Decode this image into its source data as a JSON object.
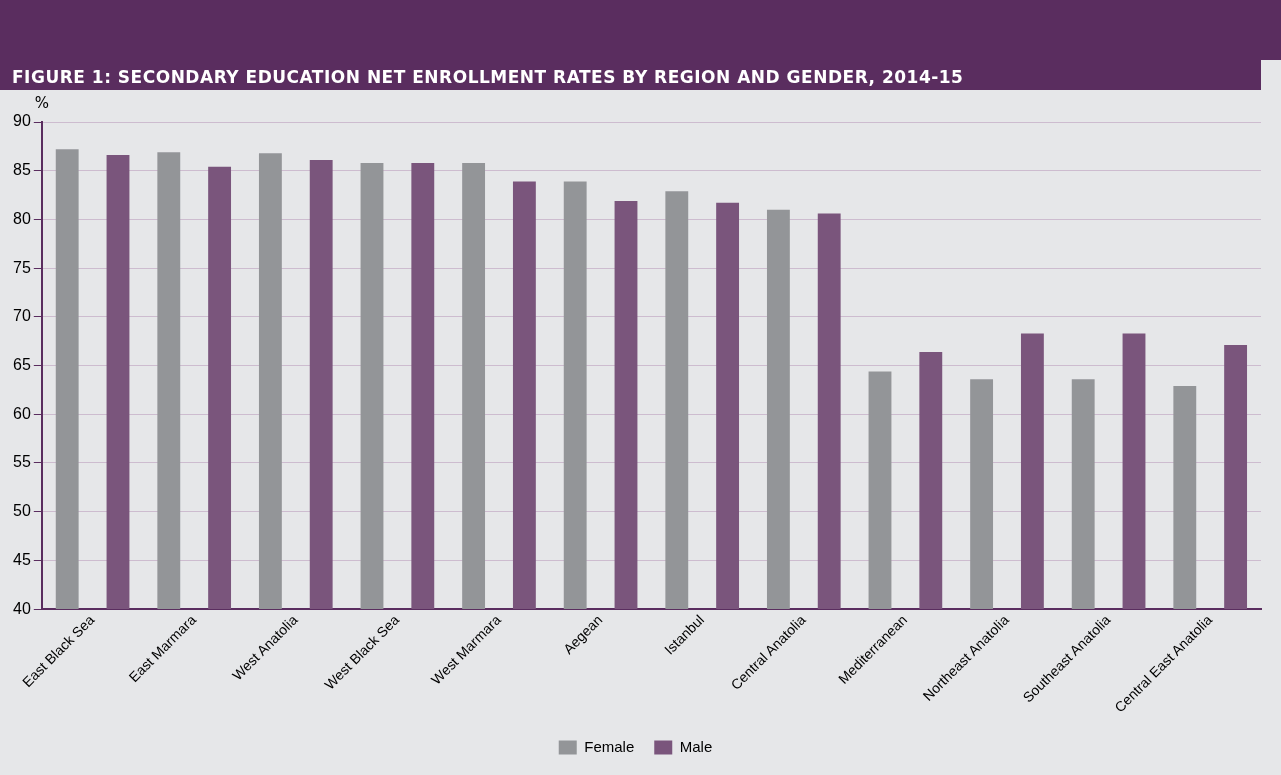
{
  "chart_data": {
    "type": "bar",
    "title": "FIGURE 1: SECONDARY EDUCATION NET ENROLLMENT RATES BY REGION AND GENDER, 2014-15",
    "ylabel": "%",
    "categories": [
      "East Black Sea",
      "East Marmara",
      "West Anatolia",
      "West Black Sea",
      "West Marmara",
      "Aegean",
      "Istanbul",
      "Central Anatolia",
      "Mediterranean",
      "Northeast Anatolia",
      "Southeast Anatolia",
      "Central East Anatolia"
    ],
    "series": [
      {
        "name": "Female",
        "color": "#939598",
        "values": [
          87.2,
          86.9,
          86.8,
          85.8,
          85.8,
          83.9,
          82.9,
          81.0,
          64.4,
          63.6,
          63.6,
          62.9
        ]
      },
      {
        "name": "Male",
        "color": "#7a557c",
        "values": [
          86.6,
          85.4,
          86.1,
          85.8,
          83.9,
          81.9,
          81.7,
          80.6,
          66.4,
          68.3,
          68.3,
          67.1
        ]
      }
    ],
    "ylim": [
      40,
      90
    ],
    "yticks": [
      40,
      45,
      50,
      55,
      60,
      65,
      70,
      75,
      80,
      85,
      90
    ],
    "grid": "y",
    "legend": "bottom"
  }
}
